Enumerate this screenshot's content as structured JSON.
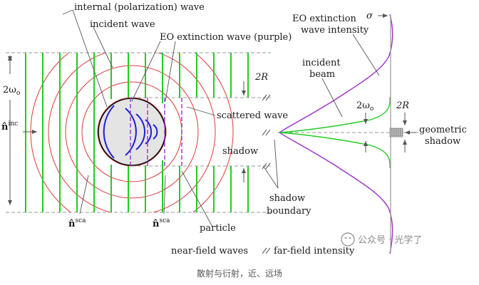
{
  "labels": {
    "internal_wave": "internal (polarization) wave",
    "incident_wave": "incident wave",
    "eo_extinction_wave": "EO extinction wave (purple)",
    "two_r_top": "2R",
    "scattered_wave": "scattered wave",
    "shadow": "shadow",
    "shadow_boundary_1": "shadow",
    "shadow_boundary_2": "boundary",
    "particle": "particle",
    "n_inc": "n̂",
    "n_inc_sup": "inc",
    "n_sca_1": "n̂",
    "n_sca_1_sup": "sca",
    "n_sca_2": "n̂",
    "n_sca_2_sup": "sca",
    "two_omega_left": "2ω",
    "two_omega_left_sub": "o",
    "near_field": "near-field waves",
    "far_field": "far-field intensity",
    "eo_intensity_1": "EO extinction",
    "eo_intensity_2": "wave intensity",
    "sigma": "σ",
    "incident_beam_1": "incident",
    "incident_beam_2": "beam",
    "two_omega_right": "2ω",
    "two_omega_right_sub": "o",
    "two_r_right": "2R",
    "geometric_shadow_1": "geometric",
    "geometric_shadow_2": "shadow",
    "watermark": "公众号 · 光学了",
    "caption": "散射与衍射，近、远场"
  },
  "colors": {
    "incident": "#22cc22",
    "internal": "#1f1fd6",
    "scattered": "#e03a3a",
    "extinction": "#9b30c8",
    "guide": "#9a9a9a",
    "particle_fill": "#e4e4e4"
  }
}
